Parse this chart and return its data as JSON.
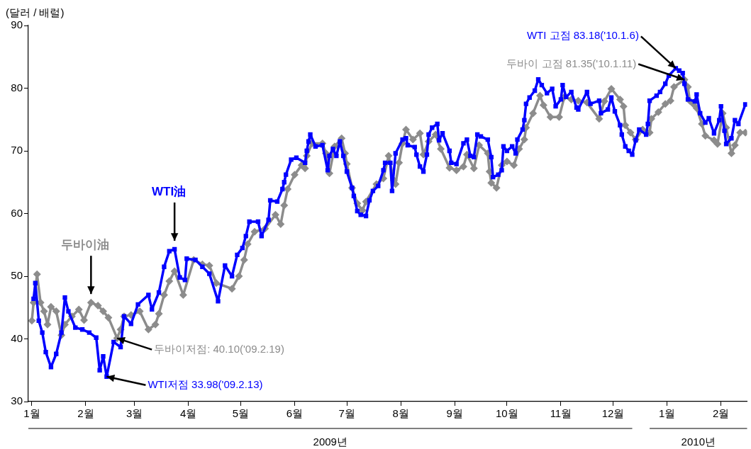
{
  "chart_data": {
    "type": "line",
    "ylabel": "(달러 / 배럴)",
    "ylim": [
      30,
      90
    ],
    "yticks": [
      30,
      40,
      50,
      60,
      70,
      80,
      90
    ],
    "grid": false,
    "legend": false,
    "line_style": "solid",
    "xlim": [
      "2008-12-30",
      "2010-02-16"
    ],
    "xticks": [
      {
        "value": "2009-01-01",
        "label": "1월"
      },
      {
        "value": "2009-02-01",
        "label": "2월"
      },
      {
        "value": "2009-03-01",
        "label": "3월"
      },
      {
        "value": "2009-04-01",
        "label": "4월"
      },
      {
        "value": "2009-05-01",
        "label": "5월"
      },
      {
        "value": "2009-06-01",
        "label": "6월"
      },
      {
        "value": "2009-07-01",
        "label": "7월"
      },
      {
        "value": "2009-08-01",
        "label": "8월"
      },
      {
        "value": "2009-09-01",
        "label": "9월"
      },
      {
        "value": "2009-10-01",
        "label": "10월"
      },
      {
        "value": "2009-11-01",
        "label": "11월"
      },
      {
        "value": "2009-12-01",
        "label": "12월"
      },
      {
        "value": "2010-01-01",
        "label": "1월"
      },
      {
        "value": "2010-02-01",
        "label": "2월"
      }
    ],
    "series": [
      {
        "name": "WTI油",
        "color": "#0000ff",
        "marker": "square",
        "x": [
          "2009-01-02",
          "2009-01-03",
          "2009-01-05",
          "2009-01-07",
          "2009-01-09",
          "2009-01-12",
          "2009-01-15",
          "2009-01-18",
          "2009-01-20",
          "2009-01-22",
          "2009-01-26",
          "2009-01-30",
          "2009-02-03",
          "2009-02-07",
          "2009-02-09",
          "2009-02-11",
          "2009-02-13",
          "2009-02-17",
          "2009-02-21",
          "2009-02-23",
          "2009-02-27",
          "2009-03-03",
          "2009-03-09",
          "2009-03-11",
          "2009-03-15",
          "2009-03-18",
          "2009-03-21",
          "2009-03-24",
          "2009-03-27",
          "2009-03-30",
          "2009-03-31",
          "2009-04-05",
          "2009-04-09",
          "2009-04-13",
          "2009-04-18",
          "2009-04-22",
          "2009-04-26",
          "2009-04-29",
          "2009-05-02",
          "2009-05-04",
          "2009-05-06",
          "2009-05-11",
          "2009-05-13",
          "2009-05-17",
          "2009-05-18",
          "2009-05-22",
          "2009-05-25",
          "2009-05-26",
          "2009-05-27",
          "2009-05-30",
          "2009-06-02",
          "2009-06-07",
          "2009-06-08",
          "2009-06-09",
          "2009-06-10",
          "2009-06-13",
          "2009-06-17",
          "2009-06-20",
          "2009-06-21",
          "2009-06-23",
          "2009-06-25",
          "2009-06-27",
          "2009-06-29",
          "2009-07-01",
          "2009-07-04",
          "2009-07-05",
          "2009-07-07",
          "2009-07-09",
          "2009-07-12",
          "2009-07-14",
          "2009-07-16",
          "2009-07-19",
          "2009-07-22",
          "2009-07-23",
          "2009-07-26",
          "2009-07-27",
          "2009-07-29",
          "2009-08-02",
          "2009-08-04",
          "2009-08-05",
          "2009-08-09",
          "2009-08-10",
          "2009-08-12",
          "2009-08-14",
          "2009-08-16",
          "2009-08-17",
          "2009-08-19",
          "2009-08-22",
          "2009-08-23",
          "2009-08-25",
          "2009-08-29",
          "2009-08-30",
          "2009-09-02",
          "2009-09-06",
          "2009-09-08",
          "2009-09-10",
          "2009-09-12",
          "2009-09-14",
          "2009-09-16",
          "2009-09-20",
          "2009-09-22",
          "2009-09-23",
          "2009-09-26",
          "2009-09-28",
          "2009-09-29",
          "2009-10-01",
          "2009-10-04",
          "2009-10-06",
          "2009-10-07",
          "2009-10-10",
          "2009-10-11",
          "2009-10-12",
          "2009-10-14",
          "2009-10-17",
          "2009-10-19",
          "2009-10-21",
          "2009-10-24",
          "2009-10-27",
          "2009-10-29",
          "2009-11-01",
          "2009-11-02",
          "2009-11-04",
          "2009-11-07",
          "2009-11-10",
          "2009-11-11",
          "2009-11-16",
          "2009-11-18",
          "2009-11-23",
          "2009-11-24",
          "2009-11-28",
          "2009-11-30",
          "2009-12-02",
          "2009-12-05",
          "2009-12-06",
          "2009-12-08",
          "2009-12-10",
          "2009-12-12",
          "2009-12-14",
          "2009-12-16",
          "2009-12-20",
          "2009-12-21",
          "2009-12-22",
          "2009-12-26",
          "2009-12-28",
          "2009-12-31",
          "2010-01-02",
          "2010-01-06",
          "2010-01-08",
          "2010-01-10",
          "2010-01-11",
          "2010-01-13",
          "2010-01-17",
          "2010-01-18",
          "2010-01-20",
          "2010-01-23",
          "2010-01-25",
          "2010-01-28",
          "2010-01-31",
          "2010-02-01",
          "2010-02-03",
          "2010-02-04",
          "2010-02-07",
          "2010-02-09",
          "2010-02-11",
          "2010-02-15"
        ],
        "values": [
          46.4,
          48.9,
          42.9,
          41.0,
          37.9,
          35.5,
          37.6,
          41.0,
          46.6,
          44.4,
          41.8,
          41.5,
          41.0,
          40.2,
          35.0,
          37.2,
          33.98,
          39.5,
          38.7,
          43.6,
          42.4,
          45.5,
          47.0,
          44.7,
          47.4,
          51.5,
          54.0,
          54.3,
          49.8,
          49.4,
          52.8,
          52.6,
          51.5,
          50.4,
          46.0,
          51.7,
          50.0,
          53.4,
          54.5,
          56.4,
          58.7,
          58.7,
          56.4,
          59.0,
          62.1,
          61.9,
          63.9,
          65.0,
          66.2,
          68.6,
          68.9,
          68.1,
          70.0,
          71.5,
          72.6,
          70.7,
          70.9,
          66.9,
          69.2,
          70.3,
          69.2,
          71.5,
          69.2,
          66.7,
          64.1,
          62.8,
          60.4,
          59.8,
          59.6,
          62.1,
          63.6,
          64.4,
          66.9,
          68.1,
          68.1,
          63.6,
          69.6,
          71.8,
          72.0,
          70.9,
          70.6,
          69.4,
          67.5,
          66.7,
          69.4,
          72.6,
          73.7,
          74.3,
          71.7,
          72.8,
          70.0,
          68.1,
          67.9,
          71.2,
          71.8,
          69.2,
          69.0,
          72.6,
          72.3,
          71.8,
          69.0,
          65.8,
          66.2,
          66.9,
          70.7,
          70.0,
          70.7,
          69.6,
          71.8,
          73.4,
          74.9,
          77.5,
          78.5,
          79.6,
          81.4,
          80.5,
          79.2,
          79.9,
          77.1,
          78.2,
          80.5,
          78.6,
          79.4,
          76.9,
          76.6,
          79.4,
          77.5,
          78.0,
          76.0,
          76.6,
          78.5,
          76.3,
          74.1,
          72.6,
          70.7,
          70.0,
          69.4,
          71.7,
          73.4,
          72.6,
          74.3,
          78.0,
          78.8,
          79.4,
          80.7,
          82.0,
          83.18,
          82.8,
          82.4,
          80.7,
          78.2,
          77.9,
          79.0,
          76.0,
          74.5,
          75.2,
          72.8,
          74.9,
          77.1,
          73.2,
          71.1,
          72.0,
          74.9,
          74.3,
          77.4
        ]
      },
      {
        "name": "두바이油",
        "color": "#8c8c8c",
        "marker": "diamond",
        "x": [
          "2009-01-01",
          "2009-01-02",
          "2009-01-04",
          "2009-01-06",
          "2009-01-08",
          "2009-01-10",
          "2009-01-12",
          "2009-01-15",
          "2009-01-18",
          "2009-01-20",
          "2009-01-24",
          "2009-01-28",
          "2009-01-31",
          "2009-02-04",
          "2009-02-08",
          "2009-02-11",
          "2009-02-14",
          "2009-02-19",
          "2009-02-21",
          "2009-02-23",
          "2009-02-27",
          "2009-03-04",
          "2009-03-09",
          "2009-03-13",
          "2009-03-15",
          "2009-03-18",
          "2009-03-21",
          "2009-03-24",
          "2009-03-29",
          "2009-04-04",
          "2009-04-09",
          "2009-04-13",
          "2009-04-17",
          "2009-04-26",
          "2009-04-30",
          "2009-05-03",
          "2009-05-05",
          "2009-05-09",
          "2009-05-15",
          "2009-05-21",
          "2009-05-24",
          "2009-05-26",
          "2009-05-28",
          "2009-06-01",
          "2009-06-05",
          "2009-06-07",
          "2009-06-08",
          "2009-06-11",
          "2009-06-17",
          "2009-06-19",
          "2009-06-21",
          "2009-06-24",
          "2009-06-28",
          "2009-06-30",
          "2009-07-01",
          "2009-07-04",
          "2009-07-07",
          "2009-07-10",
          "2009-07-12",
          "2009-07-18",
          "2009-07-22",
          "2009-07-25",
          "2009-07-28",
          "2009-07-29",
          "2009-07-31",
          "2009-08-02",
          "2009-08-04",
          "2009-08-08",
          "2009-08-12",
          "2009-08-14",
          "2009-08-17",
          "2009-08-21",
          "2009-08-24",
          "2009-08-29",
          "2009-09-02",
          "2009-09-06",
          "2009-09-08",
          "2009-09-12",
          "2009-09-15",
          "2009-09-20",
          "2009-09-21",
          "2009-09-22",
          "2009-09-25",
          "2009-09-28",
          "2009-10-01",
          "2009-10-05",
          "2009-10-08",
          "2009-10-11",
          "2009-10-12",
          "2009-10-16",
          "2009-10-20",
          "2009-10-22",
          "2009-10-26",
          "2009-10-31",
          "2009-11-03",
          "2009-11-07",
          "2009-11-11",
          "2009-11-16",
          "2009-11-23",
          "2009-11-26",
          "2009-11-30",
          "2009-12-05",
          "2009-12-07",
          "2009-12-08",
          "2009-12-11",
          "2009-12-14",
          "2009-12-18",
          "2009-12-22",
          "2009-12-23",
          "2009-12-27",
          "2009-12-31",
          "2010-01-03",
          "2010-01-05",
          "2010-01-11",
          "2010-01-13",
          "2010-01-14",
          "2010-01-16",
          "2010-01-18",
          "2010-01-21",
          "2010-01-23",
          "2010-01-28",
          "2010-01-30",
          "2010-02-02",
          "2010-02-04",
          "2010-02-07",
          "2010-02-09",
          "2010-02-12",
          "2010-02-15"
        ],
        "values": [
          42.9,
          45.8,
          50.3,
          45.8,
          44.4,
          42.3,
          45.1,
          44.4,
          40.6,
          42.3,
          43.6,
          44.7,
          43.0,
          45.8,
          45.3,
          44.4,
          43.4,
          40.1,
          41.5,
          43.6,
          43.8,
          44.4,
          41.5,
          42.3,
          44.0,
          47.0,
          49.2,
          50.8,
          47.0,
          52.6,
          51.9,
          51.7,
          48.9,
          48.0,
          50.0,
          52.6,
          55.1,
          57.1,
          57.6,
          59.8,
          58.3,
          61.3,
          63.9,
          66.2,
          67.7,
          67.2,
          69.2,
          71.2,
          71.2,
          69.6,
          66.4,
          70.7,
          72.0,
          69.6,
          67.9,
          64.1,
          61.6,
          60.5,
          61.9,
          64.7,
          65.6,
          69.2,
          65.3,
          64.7,
          68.1,
          71.2,
          73.4,
          71.8,
          72.8,
          69.4,
          71.5,
          72.6,
          70.3,
          67.3,
          66.9,
          67.5,
          69.4,
          67.2,
          70.9,
          69.6,
          66.7,
          64.9,
          64.1,
          67.7,
          68.3,
          67.7,
          70.3,
          71.8,
          73.7,
          76.0,
          78.8,
          77.3,
          75.4,
          75.4,
          78.6,
          78.2,
          78.0,
          77.7,
          75.1,
          77.9,
          79.9,
          78.2,
          77.1,
          74.1,
          72.9,
          71.8,
          73.4,
          72.9,
          75.1,
          76.2,
          77.5,
          78.0,
          80.2,
          81.35,
          80.2,
          78.0,
          77.5,
          76.8,
          74.3,
          72.4,
          71.7,
          71.1,
          76.0,
          73.7,
          69.6,
          70.9,
          72.9,
          72.9
        ]
      }
    ],
    "annotations": [
      {
        "text": "WTI 고점 83.18('10.1.6)",
        "x": "2010-01-06",
        "y": 83.18
      },
      {
        "text": "두바이 고점 81.35('10.1.11)",
        "x": "2010-01-11",
        "y": 81.35
      },
      {
        "text": "두바이저점: 40.10('09.2.19)",
        "x": "2009-02-19",
        "y": 40.1
      },
      {
        "text": "WTI저점 33.98('09.2.13)",
        "x": "2009-02-13",
        "y": 33.98
      },
      "2009년",
      "2010년"
    ]
  }
}
